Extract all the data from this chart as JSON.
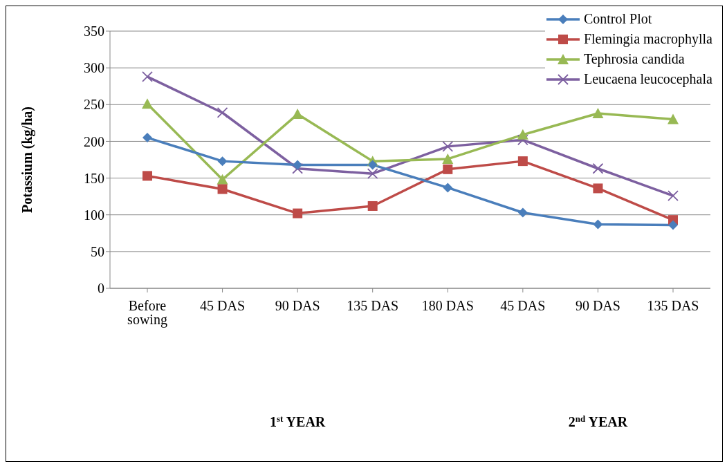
{
  "chart_data": {
    "type": "line",
    "ylabel": "Potassium (kg/ha)",
    "categories": [
      "Before sowing",
      "45 DAS",
      "90 DAS",
      "135 DAS",
      "180 DAS",
      "45 DAS",
      "90 DAS",
      "135 DAS"
    ],
    "series": [
      {
        "name": "Control Plot",
        "color": "#4a7ebb",
        "marker": "diamond",
        "values": [
          205,
          173,
          168,
          168,
          137,
          103,
          87,
          86
        ]
      },
      {
        "name": "Flemingia macrophylla",
        "color": "#be4b48",
        "marker": "square",
        "values": [
          153,
          135,
          102,
          112,
          162,
          173,
          136,
          93
        ]
      },
      {
        "name": "Tephrosia candida",
        "color": "#98b954",
        "marker": "triangle",
        "values": [
          251,
          148,
          237,
          173,
          176,
          209,
          238,
          230
        ]
      },
      {
        "name": "Leucaena leucocephala",
        "color": "#7d60a0",
        "marker": "cross",
        "values": [
          288,
          239,
          163,
          156,
          193,
          202,
          163,
          126
        ]
      }
    ],
    "ylim": [
      0,
      350
    ],
    "yticks": [
      0,
      50,
      100,
      150,
      200,
      250,
      300,
      350
    ],
    "grid": "y",
    "legend": "top right",
    "line_style": "solid",
    "annotations": [
      "1$^{st}$ YEAR",
      "2$^{nd}$ YEAR"
    ]
  }
}
